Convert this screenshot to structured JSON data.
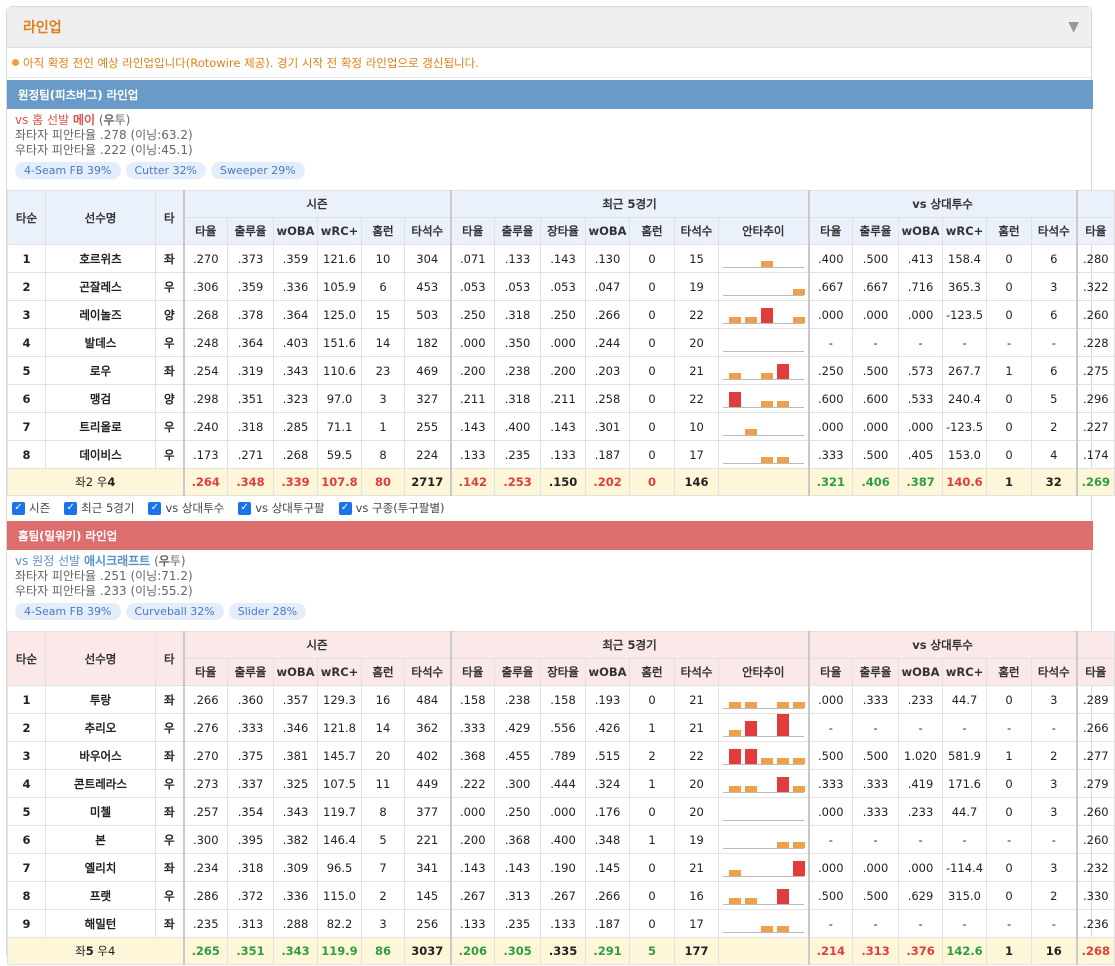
{
  "panel": {
    "title": "라인업",
    "toggle_icon": "▼",
    "notice": "아직 확정 전인 예상 라인업입니다(Rotowire 제공). 경기 시작 전 확정 라인업으로 갱신됩니다."
  },
  "headers": {
    "order": "타순",
    "player": "선수명",
    "hand": "타",
    "season": "시즌",
    "recent": "최근 5경기",
    "vsp": "vs 상대투수",
    "cols_season": [
      "타율",
      "출루율",
      "wOBA",
      "wRC+",
      "홈런",
      "타석수"
    ],
    "cols_recent": [
      "타율",
      "출루율",
      "장타율",
      "wOBA",
      "홈런",
      "타석수",
      "안타추이"
    ],
    "cols_vsp": [
      "타율",
      "출루율",
      "wOBA",
      "wRC+",
      "홈런",
      "타석수"
    ],
    "col_extra": "타율"
  },
  "away": {
    "title": "원정팀(피츠버그) 라인업",
    "vs_prefix": "vs 홈 선발",
    "pitcher": "메이",
    "hand_open": "(",
    "hand_bold": "우",
    "hand_rest": "투)",
    "lhb": "좌타자 피안타율 .278 (이닝:63.2)",
    "rhb": "우타자 피안타율 .222 (이닝:45.1)",
    "pitches": [
      "4-Seam FB 39%",
      "Cutter 32%",
      "Sweeper 29%"
    ],
    "rows": [
      {
        "no": "1",
        "name": "호르위츠",
        "hand": "좌",
        "s": [
          ".270",
          ".373",
          ".359",
          "121.6",
          "10",
          "304"
        ],
        "r": [
          ".071",
          ".133",
          ".143",
          ".130",
          "0",
          "15"
        ],
        "trend": [
          0,
          0,
          1,
          0,
          0
        ],
        "v": [
          ".400",
          ".500",
          ".413",
          "158.4",
          "0",
          "6"
        ],
        "x": ".280"
      },
      {
        "no": "2",
        "name": "곤잘레스",
        "hand": "우",
        "s": [
          ".306",
          ".359",
          ".336",
          "105.9",
          "6",
          "453"
        ],
        "r": [
          ".053",
          ".053",
          ".053",
          ".047",
          "0",
          "19"
        ],
        "trend": [
          0,
          0,
          0,
          0,
          1
        ],
        "v": [
          ".667",
          ".667",
          ".716",
          "365.3",
          "0",
          "3"
        ],
        "x": ".322"
      },
      {
        "no": "3",
        "name": "레이놀즈",
        "hand": "양",
        "s": [
          ".268",
          ".378",
          ".364",
          "125.0",
          "15",
          "503"
        ],
        "r": [
          ".250",
          ".318",
          ".250",
          ".266",
          "0",
          "22"
        ],
        "trend": [
          1,
          1,
          2,
          0,
          1
        ],
        "v": [
          ".000",
          ".000",
          ".000",
          "-123.5",
          "0",
          "6"
        ],
        "x": ".260"
      },
      {
        "no": "4",
        "name": "발데스",
        "hand": "우",
        "s": [
          ".248",
          ".364",
          ".403",
          "151.6",
          "14",
          "182"
        ],
        "r": [
          ".000",
          ".350",
          ".000",
          ".244",
          "0",
          "20"
        ],
        "trend": [
          0,
          0,
          0,
          0,
          0
        ],
        "v": [
          "-",
          "-",
          "-",
          "-",
          "-",
          "-"
        ],
        "x": ".228"
      },
      {
        "no": "5",
        "name": "로우",
        "hand": "좌",
        "s": [
          ".254",
          ".319",
          ".343",
          "110.6",
          "23",
          "469"
        ],
        "r": [
          ".200",
          ".238",
          ".200",
          ".203",
          "0",
          "21"
        ],
        "trend": [
          1,
          0,
          1,
          2,
          0
        ],
        "v": [
          ".250",
          ".500",
          ".573",
          "267.7",
          "1",
          "6"
        ],
        "x": ".275"
      },
      {
        "no": "6",
        "name": "맹검",
        "hand": "양",
        "s": [
          ".298",
          ".351",
          ".323",
          "97.0",
          "3",
          "327"
        ],
        "r": [
          ".211",
          ".318",
          ".211",
          ".258",
          "0",
          "22"
        ],
        "trend": [
          2,
          0,
          1,
          1,
          0
        ],
        "v": [
          ".600",
          ".600",
          ".533",
          "240.4",
          "0",
          "5"
        ],
        "x": ".296"
      },
      {
        "no": "7",
        "name": "트리올로",
        "hand": "우",
        "s": [
          ".240",
          ".318",
          ".285",
          "71.1",
          "1",
          "255"
        ],
        "r": [
          ".143",
          ".400",
          ".143",
          ".301",
          "0",
          "10"
        ],
        "trend": [
          0,
          1,
          0,
          0,
          0
        ],
        "v": [
          ".000",
          ".000",
          ".000",
          "-123.5",
          "0",
          "2"
        ],
        "x": ".227"
      },
      {
        "no": "8",
        "name": "데이비스",
        "hand": "우",
        "s": [
          ".173",
          ".271",
          ".268",
          "59.5",
          "8",
          "224"
        ],
        "r": [
          ".133",
          ".235",
          ".133",
          ".187",
          "0",
          "17"
        ],
        "trend": [
          0,
          0,
          1,
          1,
          0
        ],
        "v": [
          ".333",
          ".500",
          ".405",
          "153.0",
          "0",
          "4"
        ],
        "x": ".174"
      }
    ],
    "sum": {
      "label_pre": "좌2 우",
      "label_bold": "4",
      "s": [
        ".264",
        ".348",
        ".339",
        "107.8",
        "80",
        "2717"
      ],
      "r": [
        ".142",
        ".253",
        ".150",
        ".202",
        "0",
        "146"
      ],
      "v": [
        ".321",
        ".406",
        ".387",
        "140.6",
        "1",
        "32"
      ],
      "x": ".269"
    }
  },
  "options": [
    "시즌",
    "최근 5경기",
    "vs 상대투수",
    "vs 상대투구팔",
    "vs 구종(투구팔별)"
  ],
  "home": {
    "title": "홈팀(밀워키) 라인업",
    "vs_prefix": "vs 원정 선발",
    "pitcher": "애시크래프트",
    "hand_open": "(",
    "hand_bold": "우",
    "hand_rest": "투)",
    "lhb": "좌타자 피안타율 .251 (이닝:71.2)",
    "rhb": "우타자 피안타율 .233 (이닝:55.2)",
    "pitches": [
      "4-Seam FB 39%",
      "Curveball 32%",
      "Slider 28%"
    ],
    "rows": [
      {
        "no": "1",
        "name": "투랑",
        "hand": "좌",
        "s": [
          ".266",
          ".360",
          ".357",
          "129.3",
          "16",
          "484"
        ],
        "r": [
          ".158",
          ".238",
          ".158",
          ".193",
          "0",
          "21"
        ],
        "trend": [
          1,
          1,
          0,
          1,
          1
        ],
        "v": [
          ".000",
          ".333",
          ".233",
          "44.7",
          "0",
          "3"
        ],
        "x": ".289"
      },
      {
        "no": "2",
        "name": "추리오",
        "hand": "우",
        "s": [
          ".276",
          ".333",
          ".346",
          "121.8",
          "14",
          "362"
        ],
        "r": [
          ".333",
          ".429",
          ".556",
          ".426",
          "1",
          "21"
        ],
        "trend": [
          1,
          2,
          0,
          3,
          0
        ],
        "v": [
          "-",
          "-",
          "-",
          "-",
          "-",
          "-"
        ],
        "x": ".266"
      },
      {
        "no": "3",
        "name": "바우어스",
        "hand": "좌",
        "s": [
          ".270",
          ".375",
          ".381",
          "145.7",
          "20",
          "402"
        ],
        "r": [
          ".368",
          ".455",
          ".789",
          ".515",
          "2",
          "22"
        ],
        "trend": [
          2,
          2,
          1,
          1,
          1
        ],
        "v": [
          ".500",
          ".500",
          "1.020",
          "581.9",
          "1",
          "2"
        ],
        "x": ".277"
      },
      {
        "no": "4",
        "name": "콘트레라스",
        "hand": "우",
        "s": [
          ".273",
          ".337",
          ".325",
          "107.5",
          "11",
          "449"
        ],
        "r": [
          ".222",
          ".300",
          ".444",
          ".324",
          "1",
          "20"
        ],
        "trend": [
          1,
          1,
          0,
          2,
          1
        ],
        "v": [
          ".333",
          ".333",
          ".419",
          "171.6",
          "0",
          "3"
        ],
        "x": ".279"
      },
      {
        "no": "5",
        "name": "미첼",
        "hand": "좌",
        "s": [
          ".257",
          ".354",
          ".343",
          "119.7",
          "8",
          "377"
        ],
        "r": [
          ".000",
          ".250",
          ".000",
          ".176",
          "0",
          "20"
        ],
        "trend": [
          0,
          0,
          0,
          0,
          0
        ],
        "v": [
          ".000",
          ".333",
          ".233",
          "44.7",
          "0",
          "3"
        ],
        "x": ".260"
      },
      {
        "no": "6",
        "name": "본",
        "hand": "우",
        "s": [
          ".300",
          ".395",
          ".382",
          "146.4",
          "5",
          "221"
        ],
        "r": [
          ".200",
          ".368",
          ".400",
          ".348",
          "1",
          "19"
        ],
        "trend": [
          0,
          0,
          0,
          1,
          1
        ],
        "v": [
          "-",
          "-",
          "-",
          "-",
          "-",
          "-"
        ],
        "x": ".260"
      },
      {
        "no": "7",
        "name": "옐리치",
        "hand": "좌",
        "s": [
          ".234",
          ".318",
          ".309",
          "96.5",
          "7",
          "341"
        ],
        "r": [
          ".143",
          ".143",
          ".190",
          ".145",
          "0",
          "21"
        ],
        "trend": [
          1,
          0,
          0,
          0,
          2
        ],
        "v": [
          ".000",
          ".000",
          ".000",
          "-114.4",
          "0",
          "3"
        ],
        "x": ".232"
      },
      {
        "no": "8",
        "name": "프랫",
        "hand": "우",
        "s": [
          ".286",
          ".372",
          ".336",
          "115.0",
          "2",
          "145"
        ],
        "r": [
          ".267",
          ".313",
          ".267",
          ".266",
          "0",
          "16"
        ],
        "trend": [
          1,
          1,
          0,
          2,
          0
        ],
        "v": [
          ".500",
          ".500",
          ".629",
          "315.0",
          "0",
          "2"
        ],
        "x": ".330"
      },
      {
        "no": "9",
        "name": "해밀턴",
        "hand": "좌",
        "s": [
          ".235",
          ".313",
          ".288",
          "82.2",
          "3",
          "256"
        ],
        "r": [
          ".133",
          ".235",
          ".133",
          ".187",
          "0",
          "17"
        ],
        "trend": [
          0,
          0,
          1,
          1,
          0
        ],
        "v": [
          "-",
          "-",
          "-",
          "-",
          "-",
          "-"
        ],
        "x": ".236"
      }
    ],
    "sum": {
      "label_pre": "좌",
      "label_bold": "5",
      "label_post": " 우4",
      "s": [
        ".265",
        ".351",
        ".343",
        "119.9",
        "86",
        "3037"
      ],
      "r": [
        ".206",
        ".305",
        ".335",
        ".291",
        "5",
        "177"
      ],
      "v": [
        ".214",
        ".313",
        ".376",
        "142.6",
        "1",
        "16"
      ],
      "x": ".268"
    }
  },
  "colors": {
    "accent": "#e07f18",
    "away_bar": "#6a9bc8",
    "home_bar": "#dd6e6e",
    "good": "#2e9e40",
    "bad": "#e23c3c",
    "trend_low": "#f0a04a",
    "trend_high": "#e23c3c"
  },
  "summary_colors": {
    "away": {
      "s": [
        "r",
        "r",
        "r",
        "r",
        "r",
        "k"
      ],
      "r": [
        "r",
        "r",
        "k",
        "r",
        "r",
        "k"
      ],
      "v": [
        "g",
        "g",
        "g",
        "r",
        "k",
        "k"
      ],
      "x": "g"
    },
    "home": {
      "s": [
        "g",
        "g",
        "g",
        "g",
        "g",
        "k"
      ],
      "r": [
        "g",
        "g",
        "k",
        "g",
        "g",
        "k"
      ],
      "v": [
        "r",
        "r",
        "r",
        "g",
        "k",
        "k"
      ],
      "x": "r"
    }
  }
}
